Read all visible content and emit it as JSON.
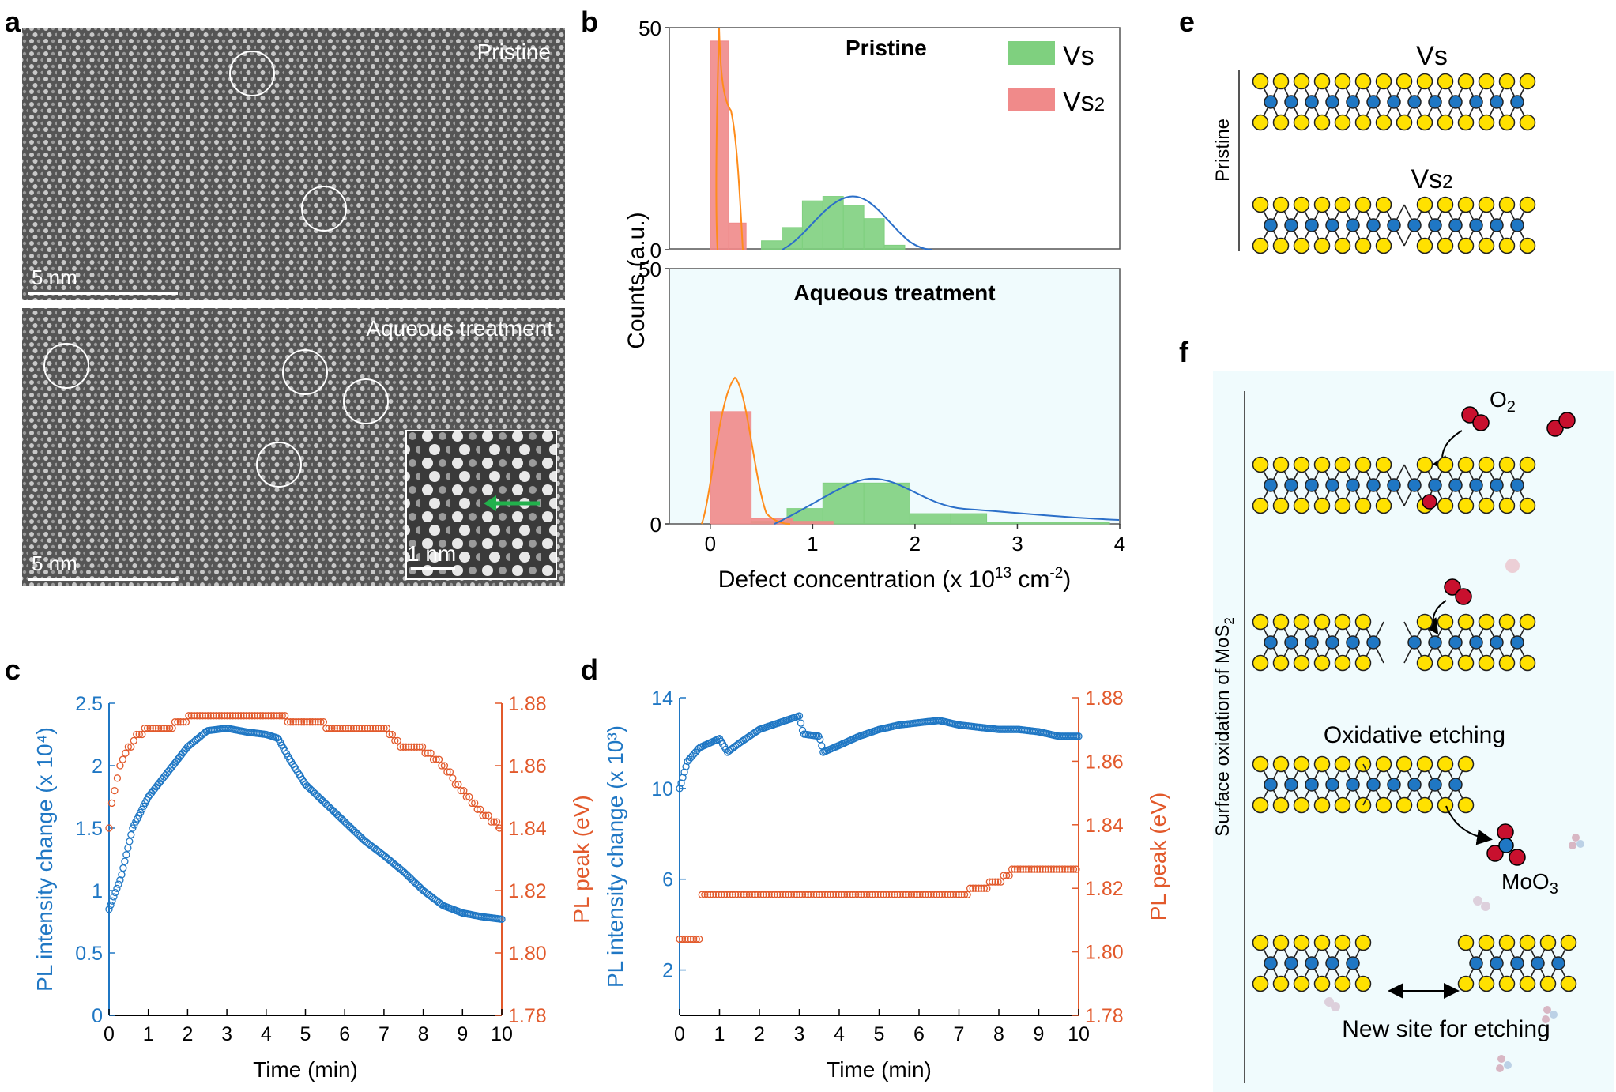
{
  "panels": {
    "a": {
      "letter": "a",
      "top_label": "Pristine",
      "bottom_label": "Aqueous treatment",
      "scale_top": "5 nm",
      "scale_bottom": "5 nm",
      "inset_scale": "1 nm"
    },
    "b": {
      "letter": "b",
      "top_title": "Pristine",
      "bottom_title": "Aqueous treatment",
      "legend": [
        "Vs",
        "Vs2"
      ],
      "colors": {
        "vs": "#7fd07f",
        "vs2": "#f08a8a",
        "kde_vs": "#2b6fc9",
        "kde_vs2": "#ff8c1a",
        "panel_bg": "#f0fbfd"
      }
    },
    "c": {
      "letter": "c"
    },
    "d": {
      "letter": "d"
    },
    "e": {
      "letter": "e",
      "side_label": "Pristine",
      "label_vs": "Vs",
      "label_vs2": "Vs2"
    },
    "f": {
      "letter": "f",
      "side_label": "Surface oxidation of MoS2",
      "o2": "O2",
      "oxidative": "Oxidative etching",
      "moo3": "MoO3",
      "new_site": "New site for etching"
    }
  },
  "chart_data": [
    {
      "type": "bar",
      "panel": "b-top",
      "title": "Pristine",
      "xlabel": "Defect concentration (x 10¹³ cm⁻²)",
      "ylabel": "Counts (a.u.)",
      "xlim": [
        -0.4,
        4.0
      ],
      "ylim": [
        0,
        50
      ],
      "yticks": [
        "0",
        "50"
      ],
      "series": [
        {
          "name": "Vs",
          "bins": [
            [
              0.5,
              0.7,
              2
            ],
            [
              0.7,
              0.9,
              5
            ],
            [
              0.9,
              1.1,
              11
            ],
            [
              1.1,
              1.3,
              12
            ],
            [
              1.3,
              1.5,
              10
            ],
            [
              1.5,
              1.7,
              7
            ],
            [
              1.7,
              1.9,
              1
            ]
          ]
        },
        {
          "name": "Vs2",
          "bins": [
            [
              0,
              0.18,
              47
            ],
            [
              0.18,
              0.35,
              6
            ]
          ]
        }
      ]
    },
    {
      "type": "bar",
      "panel": "b-bottom",
      "title": "Aqueous treatment",
      "xlabel": "Defect concentration (x 10¹³ cm⁻²)",
      "ylabel": "Counts (a.u.)",
      "xlim": [
        -0.4,
        4.0
      ],
      "ylim": [
        0,
        50
      ],
      "xticks": [
        "0",
        "1",
        "2",
        "3",
        "4"
      ],
      "yticks": [
        "0",
        "50"
      ],
      "series": [
        {
          "name": "Vs",
          "bins": [
            [
              0.4,
              0.75,
              0.5
            ],
            [
              0.75,
              1.1,
              3
            ],
            [
              1.1,
              1.5,
              8
            ],
            [
              1.5,
              1.95,
              8
            ],
            [
              1.95,
              2.35,
              2
            ],
            [
              2.35,
              2.7,
              2
            ],
            [
              2.7,
              3.9,
              0.3
            ]
          ]
        },
        {
          "name": "Vs2",
          "bins": [
            [
              0,
              0.4,
              22
            ],
            [
              0.4,
              0.8,
              1
            ],
            [
              0.8,
              1.2,
              0.5
            ]
          ]
        }
      ]
    },
    {
      "type": "scatter",
      "panel": "c",
      "xlabel": "Time (min)",
      "ylabel_left": "PL intensity change (x 10⁴)",
      "ylabel_right": "PL peak (eV)",
      "xlim": [
        0,
        10
      ],
      "ylim_left": [
        0,
        2.5
      ],
      "ylim_right": [
        1.78,
        1.88
      ],
      "xticks": [
        "0",
        "1",
        "2",
        "3",
        "4",
        "5",
        "6",
        "7",
        "8",
        "9",
        "10"
      ],
      "yticks_left": [
        "0",
        "0.5",
        "1",
        "1.5",
        "2",
        "2.5"
      ],
      "yticks_right": [
        "1.78",
        "1.80",
        "1.82",
        "1.84",
        "1.86",
        "1.88"
      ],
      "series": [
        {
          "name": "PL intensity",
          "color": "#1f77c4",
          "points": [
            [
              0,
              0.85
            ],
            [
              0.3,
              1.1
            ],
            [
              0.6,
              1.5
            ],
            [
              1.0,
              1.75
            ],
            [
              1.5,
              1.95
            ],
            [
              2.0,
              2.15
            ],
            [
              2.5,
              2.28
            ],
            [
              3.0,
              2.3
            ],
            [
              3.5,
              2.27
            ],
            [
              4.0,
              2.25
            ],
            [
              4.3,
              2.22
            ],
            [
              4.6,
              2.05
            ],
            [
              5.0,
              1.85
            ],
            [
              5.5,
              1.7
            ],
            [
              6.0,
              1.55
            ],
            [
              6.5,
              1.4
            ],
            [
              7.0,
              1.28
            ],
            [
              7.5,
              1.15
            ],
            [
              8.0,
              1.0
            ],
            [
              8.5,
              0.88
            ],
            [
              9.0,
              0.82
            ],
            [
              9.5,
              0.79
            ],
            [
              10,
              0.77
            ]
          ]
        },
        {
          "name": "PL peak",
          "color": "#e2592b",
          "points": [
            [
              0,
              1.84
            ],
            [
              0.1,
              1.85
            ],
            [
              0.3,
              1.86
            ],
            [
              0.6,
              1.868
            ],
            [
              1.0,
              1.872
            ],
            [
              1.5,
              1.872
            ],
            [
              2.0,
              1.875
            ],
            [
              3.0,
              1.876
            ],
            [
              4.0,
              1.876
            ],
            [
              5.0,
              1.874
            ],
            [
              6.0,
              1.872
            ],
            [
              7.0,
              1.872
            ],
            [
              7.5,
              1.865
            ],
            [
              8.0,
              1.865
            ],
            [
              8.5,
              1.86
            ],
            [
              9.0,
              1.852
            ],
            [
              9.5,
              1.845
            ],
            [
              10,
              1.84
            ]
          ]
        }
      ]
    },
    {
      "type": "scatter",
      "panel": "d",
      "xlabel": "Time (min)",
      "ylabel_left": "PL intensity change (x 10³)",
      "ylabel_right": "PL peak (eV)",
      "xlim": [
        0,
        10
      ],
      "ylim_left": [
        0,
        14
      ],
      "ylim_right": [
        1.78,
        1.88
      ],
      "xticks": [
        "0",
        "1",
        "2",
        "3",
        "4",
        "5",
        "6",
        "7",
        "8",
        "9",
        "10"
      ],
      "yticks_left": [
        "2",
        "6",
        "10",
        "14"
      ],
      "yticks_right": [
        "1.78",
        "1.80",
        "1.82",
        "1.84",
        "1.86",
        "1.88"
      ],
      "series": [
        {
          "name": "PL intensity",
          "color": "#1f77c4",
          "points": [
            [
              0,
              10
            ],
            [
              0.2,
              11.2
            ],
            [
              0.5,
              11.8
            ],
            [
              1.0,
              12.2
            ],
            [
              1.2,
              11.6
            ],
            [
              1.5,
              12.0
            ],
            [
              2.0,
              12.6
            ],
            [
              2.5,
              12.9
            ],
            [
              3.0,
              13.2
            ],
            [
              3.1,
              12.4
            ],
            [
              3.5,
              12.3
            ],
            [
              3.6,
              11.6
            ],
            [
              4.0,
              11.9
            ],
            [
              4.5,
              12.3
            ],
            [
              5.0,
              12.6
            ],
            [
              5.5,
              12.8
            ],
            [
              6.0,
              12.9
            ],
            [
              6.5,
              13.0
            ],
            [
              7.0,
              12.8
            ],
            [
              7.5,
              12.7
            ],
            [
              8.0,
              12.6
            ],
            [
              8.5,
              12.6
            ],
            [
              9.0,
              12.5
            ],
            [
              9.5,
              12.3
            ],
            [
              10,
              12.3
            ]
          ]
        },
        {
          "name": "PL peak",
          "color": "#e2592b",
          "points": [
            [
              0,
              1.803
            ],
            [
              0.5,
              1.803
            ],
            [
              0.5,
              1.818
            ],
            [
              1.5,
              1.818
            ],
            [
              2.0,
              1.818
            ],
            [
              3.0,
              1.818
            ],
            [
              4.0,
              1.818
            ],
            [
              5.0,
              1.818
            ],
            [
              6.0,
              1.818
            ],
            [
              7.0,
              1.818
            ],
            [
              7.5,
              1.82
            ],
            [
              8.0,
              1.822
            ],
            [
              8.3,
              1.825
            ],
            [
              8.5,
              1.825
            ],
            [
              9.0,
              1.826
            ],
            [
              10,
              1.826
            ]
          ]
        }
      ]
    }
  ]
}
